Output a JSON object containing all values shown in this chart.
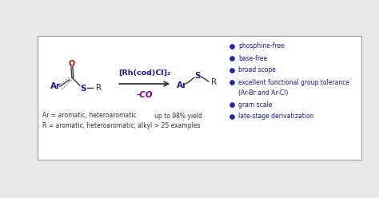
{
  "bg_color": "#e8e8e8",
  "box_color": "#ffffff",
  "box_edge_color": "#999999",
  "dark_blue": "#1a1a8c",
  "red": "#cc0000",
  "purple": "#800080",
  "black": "#333333",
  "bullet_color": "#2222aa",
  "reagent_text": "[Rh(cod)Cl]₂",
  "co_text": "-CO",
  "bottom_left_line1": "Ar = aromatic, heteroaromatic",
  "bottom_left_line2": "R = aromatic, heteroaromatic, alkyl",
  "bottom_right_line1": "up to 98% yield",
  "bottom_right_line2": "> 25 examples",
  "bullet_points": [
    "phosphine-free",
    "base-free",
    "broad scope",
    "excellent functional group tolerance",
    "(Ar-Br and Ar-Cl)",
    "gram scale",
    "late-stage derivatization"
  ]
}
